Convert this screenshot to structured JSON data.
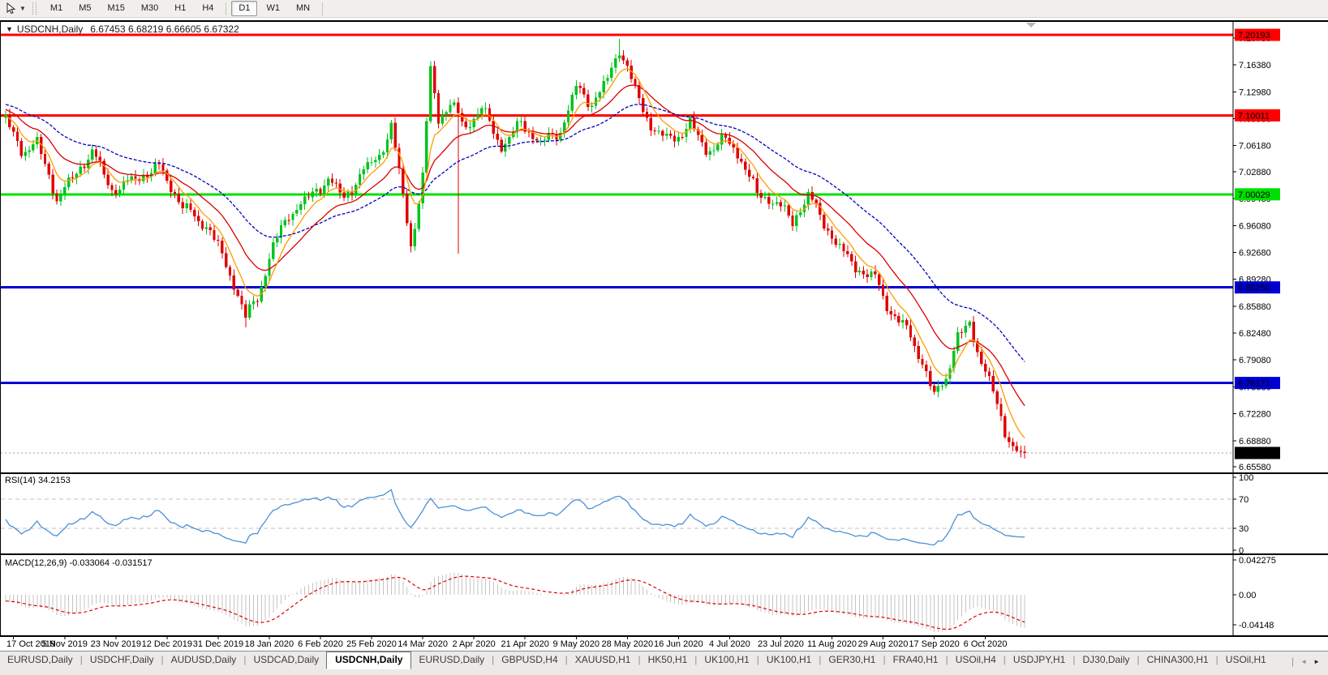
{
  "window": {
    "title_symbol": "USDCNH,Daily",
    "ohlc_text": "6.67453 6.68219 6.66605 6.67322"
  },
  "toolbar": {
    "timeframes": [
      "M1",
      "M5",
      "M15",
      "M30",
      "H1",
      "H4",
      "D1",
      "W1",
      "MN"
    ],
    "active_timeframe": "D1"
  },
  "colors": {
    "candle_up": "#00c41e",
    "candle_down": "#e00000",
    "ma_fast": "#ff9c00",
    "ma_med": "#dc0000",
    "ma_slow": "#0000c0",
    "current_price_dash": "#a0a0a0",
    "current_price_label_bg": "#000000",
    "rsi_line": "#4a90d8",
    "level_dash": "#c0c0c0",
    "macd_hist": "#c4c4c4",
    "macd_signal": "#e00000"
  },
  "chart_data": {
    "type": "candlestick",
    "symbol": "USDCNH",
    "period": "Daily",
    "last_candle": {
      "o": 6.67453,
      "h": 6.68219,
      "l": 6.66605,
      "c": 6.67322
    },
    "y_range": {
      "max": 7.2183,
      "min": 6.6486
    },
    "y_ticks": [
      "7.19780",
      "7.16380",
      "7.12980",
      "7.09580",
      "7.06180",
      "7.02880",
      "6.99480",
      "6.96080",
      "6.92680",
      "6.89280",
      "6.85880",
      "6.82480",
      "6.79080",
      "6.75680",
      "6.72280",
      "6.68880",
      "6.65580"
    ],
    "x_ticks": [
      "17 Oct 2019",
      "5 Nov 2019",
      "23 Nov 2019",
      "12 Dec 2019",
      "31 Dec 2019",
      "18 Jan 2020",
      "6 Feb 2020",
      "25 Feb 2020",
      "14 Mar 2020",
      "2 Apr 2020",
      "21 Apr 2020",
      "9 May 2020",
      "28 May 2020",
      "16 Jun 2020",
      "4 Jul 2020",
      "23 Jul 2020",
      "11 Aug 2020",
      "29 Aug 2020",
      "17 Sep 2020",
      "6 Oct 2020"
    ],
    "candle_count": 260,
    "close_anchors": [
      [
        -60,
        7.045
      ],
      [
        -45,
        7.135
      ],
      [
        -32,
        7.165
      ],
      [
        -15,
        7.115
      ],
      [
        0,
        7.095
      ],
      [
        4,
        7.055
      ],
      [
        8,
        7.065
      ],
      [
        13,
        6.995
      ],
      [
        17,
        7.02
      ],
      [
        22,
        7.055
      ],
      [
        27,
        7.005
      ],
      [
        33,
        7.02
      ],
      [
        39,
        7.035
      ],
      [
        45,
        6.985
      ],
      [
        52,
        6.955
      ],
      [
        57,
        6.9
      ],
      [
        61,
        6.845
      ],
      [
        64,
        6.87
      ],
      [
        68,
        6.935
      ],
      [
        72,
        6.975
      ],
      [
        78,
        7.0
      ],
      [
        82,
        7.02
      ],
      [
        86,
        6.995
      ],
      [
        91,
        7.03
      ],
      [
        95,
        7.05
      ],
      [
        98,
        7.085
      ],
      [
        101,
        7.0
      ],
      [
        103,
        6.935
      ],
      [
        106,
        7.02
      ],
      [
        108,
        7.16
      ],
      [
        110,
        7.095
      ],
      [
        113,
        7.115
      ],
      [
        117,
        7.085
      ],
      [
        121,
        7.11
      ],
      [
        126,
        7.06
      ],
      [
        131,
        7.09
      ],
      [
        136,
        7.065
      ],
      [
        141,
        7.08
      ],
      [
        145,
        7.135
      ],
      [
        149,
        7.115
      ],
      [
        153,
        7.145
      ],
      [
        156,
        7.185
      ],
      [
        158,
        7.16
      ],
      [
        162,
        7.105
      ],
      [
        166,
        7.075
      ],
      [
        170,
        7.07
      ],
      [
        174,
        7.09
      ],
      [
        178,
        7.055
      ],
      [
        183,
        7.07
      ],
      [
        187,
        7.045
      ],
      [
        191,
        7.0
      ],
      [
        196,
        6.99
      ],
      [
        200,
        6.965
      ],
      [
        204,
        7.0
      ],
      [
        209,
        6.955
      ],
      [
        213,
        6.925
      ],
      [
        218,
        6.9
      ],
      [
        221,
        6.895
      ],
      [
        225,
        6.85
      ],
      [
        229,
        6.83
      ],
      [
        232,
        6.8
      ],
      [
        236,
        6.745
      ],
      [
        239,
        6.77
      ],
      [
        242,
        6.82
      ],
      [
        245,
        6.835
      ],
      [
        248,
        6.79
      ],
      [
        251,
        6.75
      ],
      [
        254,
        6.7
      ],
      [
        257,
        6.675
      ],
      [
        259,
        6.67322
      ]
    ],
    "special_wicks": [
      {
        "i": 61,
        "low": 6.832
      },
      {
        "i": 108,
        "high": 7.168
      },
      {
        "i": 115,
        "low": 6.925
      },
      {
        "i": 156,
        "high": 7.197
      }
    ],
    "horizontal_lines": [
      {
        "price": 7.20193,
        "label": "7.20193",
        "color": "#fe0000"
      },
      {
        "price": 7.10011,
        "label": "7.10011",
        "color": "#fe0000"
      },
      {
        "price": 7.00029,
        "label": "7.00029",
        "color": "#00e000"
      },
      {
        "price": 6.8825,
        "label": "6.88250",
        "color": "#0000d2"
      },
      {
        "price": 6.76171,
        "label": "6.76171",
        "color": "#0000d2"
      }
    ],
    "current_price_line": {
      "price": 6.67322,
      "label": "6.67322"
    },
    "moving_averages": [
      {
        "name": "slow",
        "type": "ema",
        "window": 40,
        "color": "#0000c0",
        "dashed": true
      },
      {
        "name": "medium",
        "type": "ema",
        "window": 18,
        "color": "#dc0000",
        "dashed": false
      },
      {
        "name": "fast",
        "type": "ema",
        "window": 7,
        "color": "#ff9c00",
        "dashed": false
      }
    ],
    "indicators": {
      "rsi": {
        "name": "RSI(14)",
        "value": "34.2153",
        "axis_labels": [
          "100",
          "70",
          "30",
          "0"
        ],
        "level_lines": [
          70,
          30
        ]
      },
      "macd": {
        "name": "MACD(12,26,9)",
        "values": "-0.033064 -0.031517",
        "axis_labels": [
          "0.042275",
          "0.00",
          "-0.04148"
        ]
      }
    }
  },
  "tabs": {
    "items": [
      "EURUSD,Daily",
      "USDCHF,Daily",
      "AUDUSD,Daily",
      "USDCAD,Daily",
      "USDCNH,Daily",
      "EURUSD,Daily",
      "GBPUSD,H4",
      "XAUUSD,H1",
      "HK50,H1",
      "UK100,H1",
      "UK100,H1",
      "GER30,H1",
      "FRA40,H1",
      "USOil,H4",
      "USDJPY,H1",
      "DJ30,Daily",
      "CHINA300,H1",
      "USOil,H1"
    ],
    "active_index": 4,
    "scroll_left": "◄",
    "scroll_right": "►"
  }
}
